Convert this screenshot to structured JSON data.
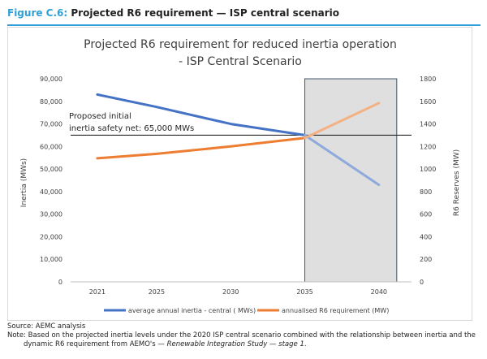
{
  "heading": {
    "label": "Figure C.6:",
    "title": "Projected R6 requirement — ISP central scenario"
  },
  "chart_data": {
    "type": "line",
    "title_line1": "Projected R6 requirement for reduced inertia operation",
    "title_line2": "- ISP Central Scenario",
    "x": [
      "2021",
      "2025",
      "2030",
      "2035",
      "2040"
    ],
    "y_left_label": "Inertia (MWs)",
    "y_right_label": "R6 Reserves (MW)",
    "y_left_ticks": [
      "0",
      "10,000",
      "20,000",
      "30,000",
      "40,000",
      "50,000",
      "60,000",
      "70,000",
      "80,000",
      "90,000"
    ],
    "y_right_ticks": [
      "0",
      "200",
      "400",
      "600",
      "800",
      "1000",
      "1200",
      "1400",
      "1600",
      "1800"
    ],
    "ylim_left": [
      0,
      90000
    ],
    "ylim_right": [
      0,
      1800
    ],
    "grid": false,
    "legend_position": "bottom",
    "series": [
      {
        "name": "average annual inertia - central ( MWs)",
        "axis": "left",
        "color": "#4472c4",
        "points": [
          [
            2021,
            83000
          ],
          [
            2025,
            77500
          ],
          [
            2030,
            70000
          ],
          [
            2035,
            65000
          ],
          [
            2040,
            43000
          ]
        ],
        "shaded_from": 2035,
        "shaded_color": "#8ea9db"
      },
      {
        "name": "annualised R6 requirement (MW)",
        "axis": "right",
        "color": "#ed7d31",
        "points": [
          [
            2021,
            1095
          ],
          [
            2025,
            1135
          ],
          [
            2030,
            1200
          ],
          [
            2035,
            1275
          ],
          [
            2040,
            1585
          ]
        ],
        "shaded_from": 2035,
        "shaded_color": "#f4b183"
      }
    ],
    "reference_line": {
      "value": 65000,
      "axis": "left",
      "label_line1": "Proposed initial",
      "label_line2": "inertia safety net: 65,000 MWs"
    },
    "highlight_region": {
      "from": 2035,
      "to": 2040,
      "color": "#d9d9d9"
    }
  },
  "footer": {
    "source": "Source: AEMC analysis",
    "note_line1": "Note: Based on the projected inertia levels under the 2020 ISP central scenario combined with the relationship between inertia and the",
    "note_line2_plain": "dynamic R6 requirement from AEMO's — ",
    "note_line2_italic": "Renewable Integration Study — stage 1",
    "note_line2_end": "."
  }
}
